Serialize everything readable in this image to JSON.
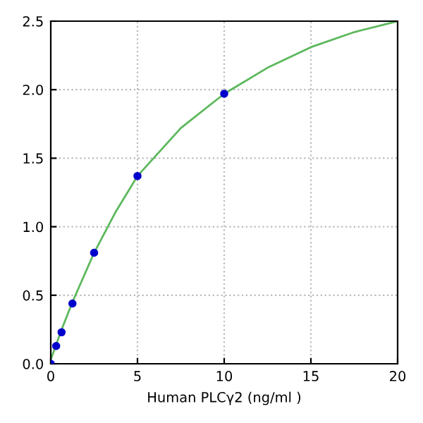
{
  "chart_data": {
    "type": "scatter",
    "xlabel": "Human PLCγ2 (ng/ml )",
    "x": [
      0,
      0.3125,
      0.625,
      1.25,
      2.5,
      5,
      10
    ],
    "series": [
      {
        "color": "#0000cc",
        "values": [
          0.0,
          0.13,
          0.23,
          0.44,
          0.81,
          1.37,
          1.97
        ],
        "marker": "circle"
      },
      {
        "type": "line",
        "color": "#5cb85c",
        "x": [
          0,
          0.625,
          1.25,
          2.5,
          3.75,
          5,
          7.5,
          10,
          12.5,
          15,
          17.5,
          20
        ],
        "values": [
          0.03,
          0.25,
          0.45,
          0.81,
          1.11,
          1.37,
          1.72,
          1.97,
          2.16,
          2.31,
          2.42,
          2.5
        ],
        "marker": "none"
      }
    ],
    "xlim": [
      0,
      20
    ],
    "ylim": [
      0,
      2.5
    ],
    "xticks": [
      0,
      5,
      10,
      15,
      20
    ],
    "yticks": [
      {
        "value": 0,
        "label": "0.0"
      },
      {
        "value": 0.5,
        "label": "0.5"
      },
      {
        "value": 1,
        "label": "1.0"
      },
      {
        "value": 1.5,
        "label": "1.5"
      },
      {
        "value": 2,
        "label": "2.0"
      },
      {
        "value": 2.5,
        "label": "2.5"
      }
    ],
    "grid": true
  }
}
